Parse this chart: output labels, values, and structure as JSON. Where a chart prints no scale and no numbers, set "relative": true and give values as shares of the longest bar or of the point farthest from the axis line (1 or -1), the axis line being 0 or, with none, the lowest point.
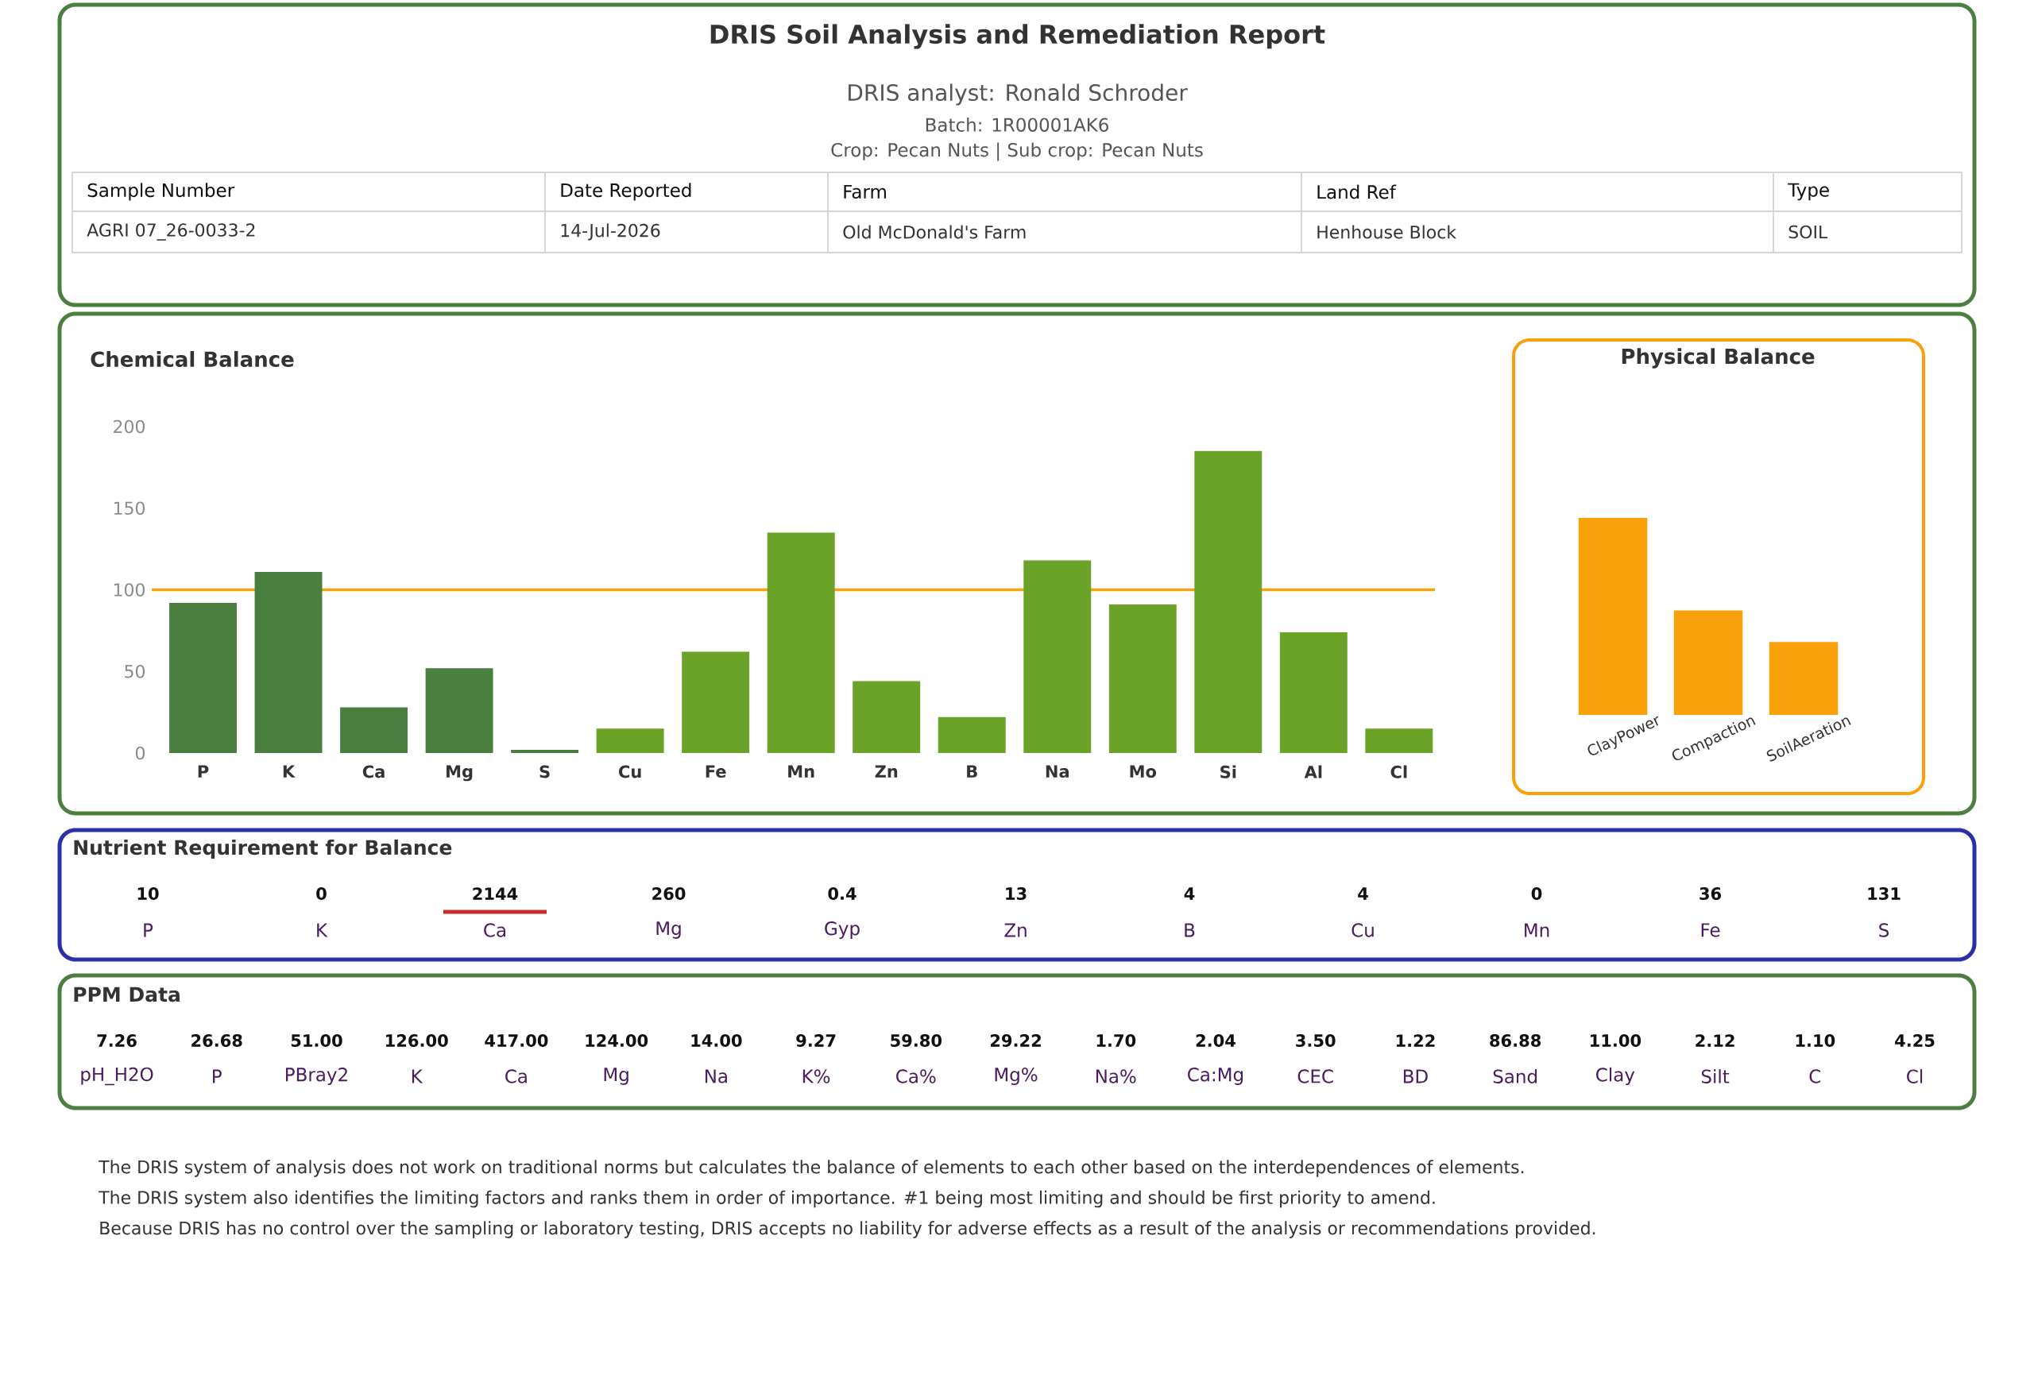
{
  "chart_data": [
    {
      "type": "other",
      "title": "DRIS Soil Analysis and Remediation Report",
      "subtitle": "DRIS analyst: Ronald Schroder",
      "annotations": [
        "Batch: 1R00001AK6",
        "Crop: Pecan Nuts | Sub crop: Pecan Nuts"
      ],
      "categories": [
        "Sample Number",
        "Date Reported",
        "Farm",
        "Land Ref",
        "Type"
      ],
      "cell_labels": [
        [
          "AGRI 07_26-0033-2",
          "14-Jul-2026",
          "Old McDonald's Farm",
          "Henhouse Block",
          "SOIL"
        ]
      ]
    },
    {
      "type": "bar",
      "title": "Chemical Balance",
      "categories": [
        "P",
        "K",
        "Ca",
        "Mg",
        "S",
        "Cu",
        "Fe",
        "Mn",
        "Zn",
        "B",
        "Na",
        "Mo",
        "Si",
        "Al",
        "Cl"
      ],
      "values": [
        92,
        111,
        28,
        52,
        2,
        15,
        62,
        135,
        44,
        22,
        118,
        91,
        185,
        74,
        15
      ],
      "colors": [
        "#4a7f3f",
        "#4a7f3f",
        "#4a7f3f",
        "#4a7f3f",
        "#4a7f3f",
        "#6ba328",
        "#6ba328",
        "#6ba328",
        "#6ba328",
        "#6ba328",
        "#6ba328",
        "#6ba328",
        "#6ba328",
        "#6ba328",
        "#6ba328"
      ],
      "ylim": [
        0,
        200
      ],
      "yticks": [
        0,
        50,
        100,
        150,
        200
      ],
      "ref_lines": [
        {
          "axis": "y",
          "value": 100,
          "color": "#f5a40c"
        }
      ]
    },
    {
      "type": "bar",
      "title": "Physical Balance",
      "categories": [
        "ClayPower",
        "Compaction",
        "SoilAeration"
      ],
      "values": [
        1,
        0.53,
        0.37
      ],
      "color": "#f9a00a",
      "relative": true
    },
    {
      "type": "other",
      "title": "Nutrient Requirement for Balance",
      "categories": [
        "P",
        "K",
        "Ca",
        "Mg",
        "Gyp",
        "Zn",
        "B",
        "Cu",
        "Mn",
        "Fe",
        "S"
      ],
      "values": [
        10,
        0,
        2144,
        260,
        0.4,
        13,
        4,
        4,
        0,
        36,
        131
      ],
      "data_labels": true,
      "colors": [
        null,
        null,
        "#cc2b2b",
        null,
        null,
        null,
        null,
        null,
        null,
        null,
        null
      ]
    },
    {
      "type": "other",
      "title": "PPM Data",
      "categories": [
        "pH_H2O",
        "P",
        "PBray2",
        "K",
        "Ca",
        "Mg",
        "Na",
        "K%",
        "Ca%",
        "Mg%",
        "Na%",
        "Ca:Mg",
        "CEC",
        "BD",
        "Sand",
        "Clay",
        "Silt",
        "C",
        "Cl"
      ],
      "value_labels": [
        "7.26",
        "26.68",
        "51.00",
        "126.00",
        "417.00",
        "124.00",
        "14.00",
        "9.27",
        "59.80",
        "29.22",
        "1.70",
        "2.04",
        "3.50",
        "1.22",
        "86.88",
        "11.00",
        "2.12",
        "1.10",
        "4.25"
      ],
      "annotations": [
        "The DRIS system of analysis does not work on traditional norms but calculates the balance of elements to each other based on the interdependences of elements.",
        "The DRIS system also identifies the limiting factors and ranks them in order of importance. #1 being most limiting and should be first priority to amend.",
        "Because DRIS has no control over the sampling or laboratory testing, DRIS accepts no liability for adverse effects as a result of the analysis or recommendations provided."
      ]
    }
  ]
}
